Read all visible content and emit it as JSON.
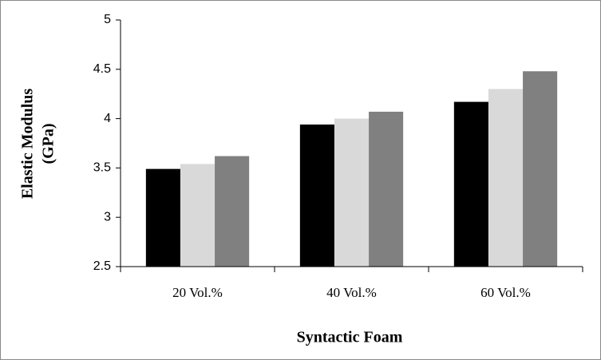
{
  "chart_data": {
    "type": "bar",
    "ylabel": [
      "Elastic Modulus",
      "(GPa)"
    ],
    "xlabel": "Syntactic Foam",
    "categories": [
      "20 Vol.%",
      "40 Vol.%",
      "60 Vol.%"
    ],
    "series": [
      {
        "color": "#000000",
        "values": [
          3.49,
          3.94,
          4.17
        ]
      },
      {
        "color": "#d9d9d9",
        "values": [
          3.54,
          4.0,
          4.3
        ]
      },
      {
        "color": "#808080",
        "values": [
          3.62,
          4.07,
          4.48
        ]
      }
    ],
    "ylim": [
      2.5,
      5
    ],
    "yticks": [
      2.5,
      3,
      3.5,
      4,
      4.5,
      5
    ],
    "grid": false
  }
}
